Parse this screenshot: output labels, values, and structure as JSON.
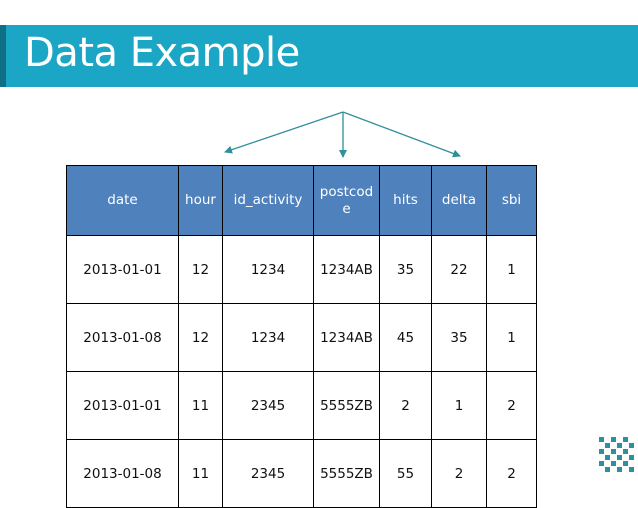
{
  "slide": {
    "title": "Data Example",
    "accent_color": "#1aa6c4",
    "header_color": "#4f81bd"
  },
  "table": {
    "columns": [
      "date",
      "hour",
      "id_activity",
      "postcod\ne",
      "hits",
      "delta",
      "sbi"
    ],
    "rows": [
      [
        "2013-01-01",
        "12",
        "1234",
        "1234AB",
        "35",
        "22",
        "1"
      ],
      [
        "2013-01-08",
        "12",
        "1234",
        "1234AB",
        "45",
        "35",
        "1"
      ],
      [
        "2013-01-01",
        "11",
        "2345",
        "5555ZB",
        "2",
        "1",
        "2"
      ],
      [
        "2013-01-08",
        "11",
        "2345",
        "5555ZB",
        "55",
        "2",
        "2"
      ]
    ]
  }
}
